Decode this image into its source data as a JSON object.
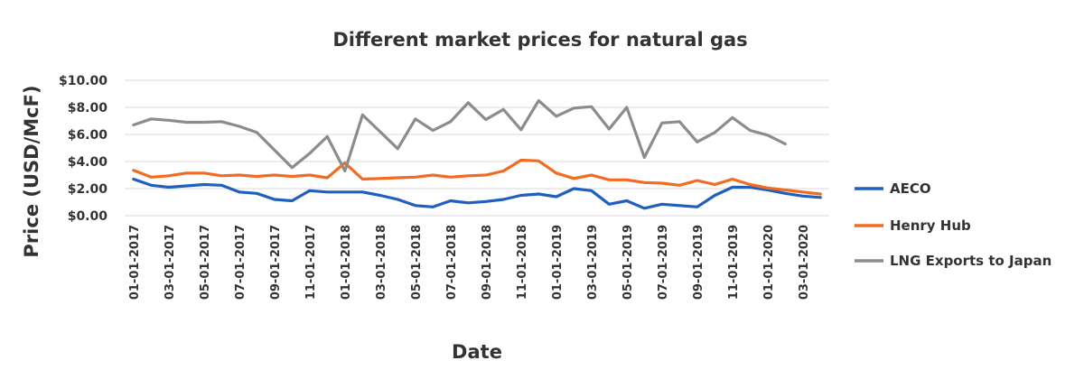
{
  "chart_data": {
    "type": "line",
    "title": "Different market prices for natural gas",
    "xlabel": "Date",
    "ylabel": "Price (USD/McF)",
    "ylim": [
      0,
      10
    ],
    "yticks": [
      "$0.00",
      "$2.00",
      "$4.00",
      "$6.00",
      "$8.00",
      "$10.00"
    ],
    "grid": true,
    "legend": "right",
    "x": [
      "01-01-2017",
      "02-01-2017",
      "03-01-2017",
      "04-01-2017",
      "05-01-2017",
      "06-01-2017",
      "07-01-2017",
      "08-01-2017",
      "09-01-2017",
      "10-01-2017",
      "11-01-2017",
      "12-01-2017",
      "01-01-2018",
      "02-01-2018",
      "03-01-2018",
      "04-01-2018",
      "05-01-2018",
      "06-01-2018",
      "07-01-2018",
      "08-01-2018",
      "09-01-2018",
      "10-01-2018",
      "11-01-2018",
      "12-01-2018",
      "01-01-2019",
      "02-01-2019",
      "03-01-2019",
      "04-01-2019",
      "05-01-2019",
      "06-01-2019",
      "07-01-2019",
      "08-01-2019",
      "09-01-2019",
      "10-01-2019",
      "11-01-2019",
      "12-01-2019",
      "01-01-2020",
      "02-01-2020",
      "03-01-2020",
      "04-01-2020"
    ],
    "x_tick_labels": [
      "01-01-2017",
      "03-01-2017",
      "05-01-2017",
      "07-01-2017",
      "09-01-2017",
      "11-01-2017",
      "01-01-2018",
      "03-01-2018",
      "05-01-2018",
      "07-01-2018",
      "09-01-2018",
      "11-01-2018",
      "01-01-2019",
      "03-01-2019",
      "05-01-2019",
      "07-01-2019",
      "09-01-2019",
      "11-01-2019",
      "01-01-2020",
      "03-01-2020"
    ],
    "series": [
      {
        "name": "AECO",
        "color": "#1f5fbf",
        "values": [
          2.7,
          2.25,
          2.1,
          2.2,
          2.3,
          2.25,
          1.75,
          1.65,
          1.2,
          1.1,
          1.85,
          1.75,
          1.75,
          1.75,
          1.5,
          1.2,
          0.75,
          0.65,
          1.1,
          0.95,
          1.05,
          1.2,
          1.5,
          1.6,
          1.4,
          2.0,
          1.85,
          0.85,
          1.1,
          0.55,
          0.85,
          0.75,
          0.65,
          1.5,
          2.1,
          2.1,
          1.9,
          1.65,
          1.45,
          1.35
        ]
      },
      {
        "name": "Henry Hub",
        "color": "#f26b21",
        "values": [
          3.35,
          2.85,
          2.95,
          3.15,
          3.15,
          2.95,
          3.0,
          2.9,
          3.0,
          2.9,
          3.0,
          2.8,
          3.9,
          2.7,
          2.75,
          2.8,
          2.85,
          3.0,
          2.85,
          2.95,
          3.0,
          3.3,
          4.1,
          4.05,
          3.15,
          2.75,
          3.0,
          2.65,
          2.65,
          2.45,
          2.4,
          2.25,
          2.6,
          2.3,
          2.7,
          2.3,
          2.05,
          1.9,
          1.75,
          1.6
        ]
      },
      {
        "name": "LNG Exports to Japan",
        "color": "#8c8c8c",
        "values": [
          6.7,
          7.15,
          7.05,
          6.9,
          6.9,
          6.95,
          6.6,
          6.15,
          4.85,
          3.55,
          4.6,
          5.85,
          3.3,
          7.45,
          6.2,
          4.95,
          7.15,
          6.3,
          6.95,
          8.35,
          7.1,
          7.85,
          6.35,
          8.5,
          7.35,
          7.95,
          8.05,
          6.4,
          8.0,
          4.3,
          6.85,
          6.95,
          5.45,
          6.15,
          7.25,
          6.3,
          5.95,
          5.3,
          null,
          null
        ]
      }
    ]
  }
}
